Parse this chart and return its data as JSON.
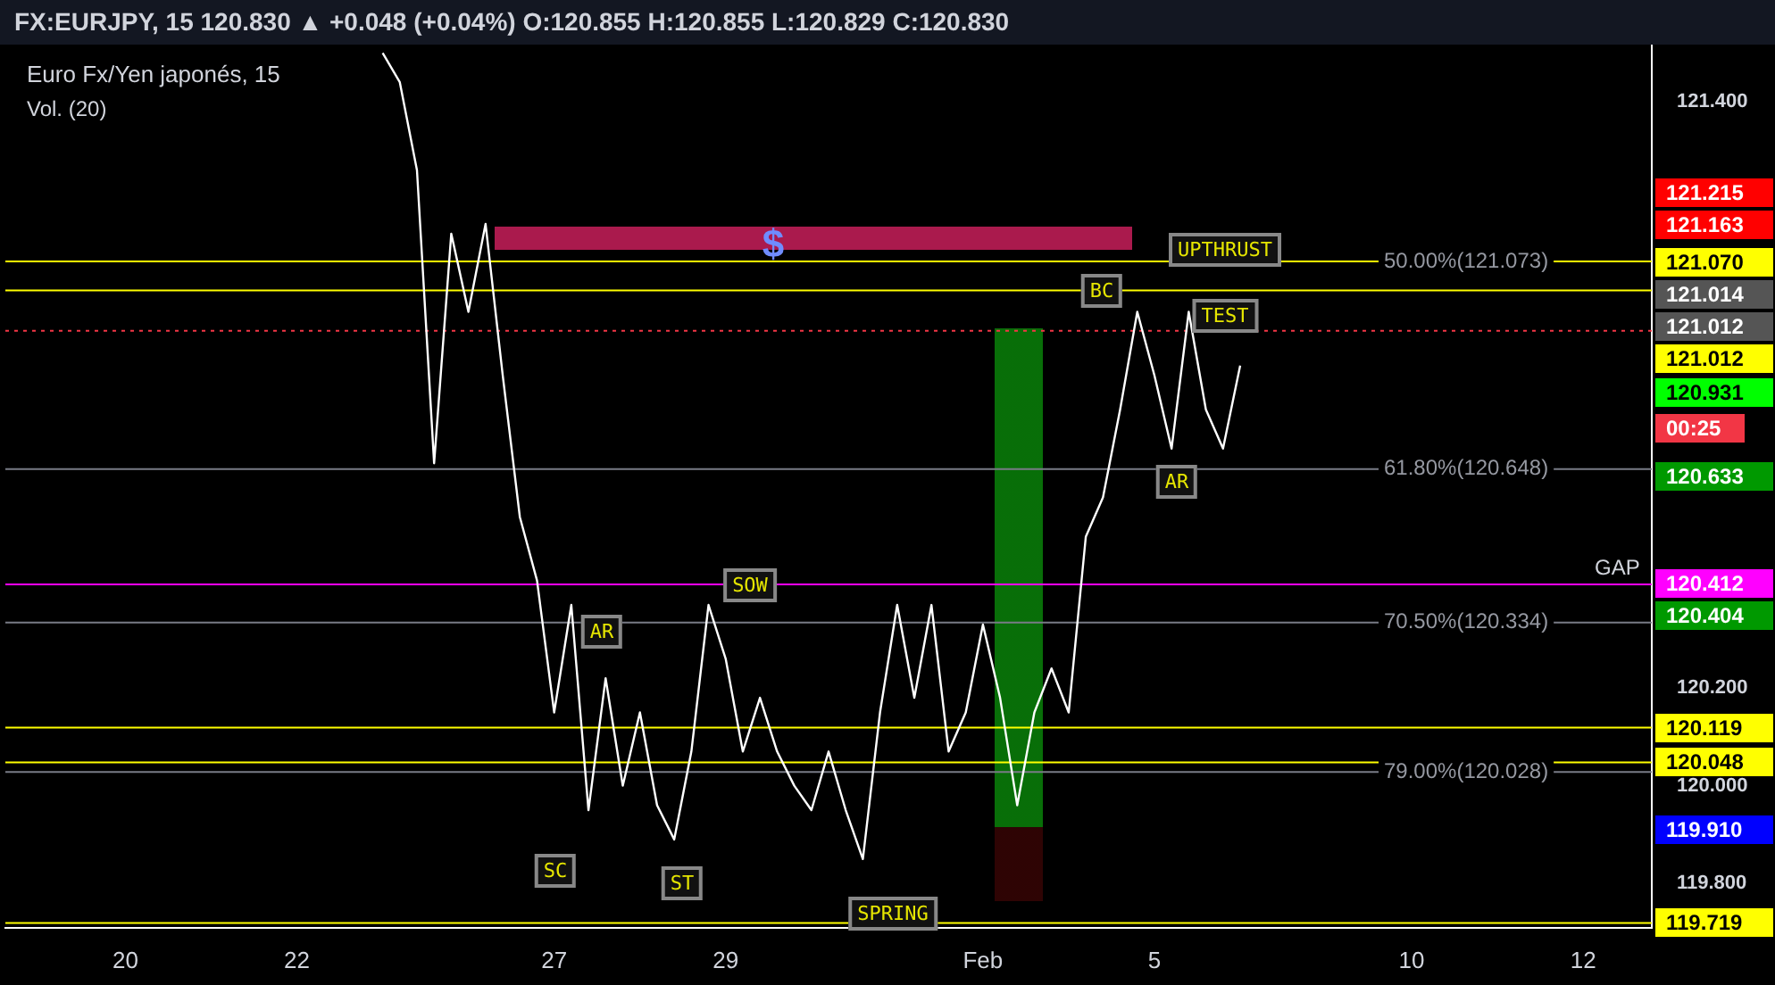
{
  "chart_data": {
    "type": "line",
    "title": "Euro Fx/Yen japonés, 15",
    "subtitle": "FX:EURJPY, 15  120.830 ▲ +0.048 (+0.04%) O:120.855 H:120.855 L:120.829 C:120.830",
    "categories": [
      null,
      null,
      null,
      null,
      null,
      null,
      null,
      "20",
      null,
      null,
      null,
      null,
      null,
      null,
      null,
      null,
      null,
      "22",
      null,
      null,
      null,
      null,
      null,
      null,
      null,
      null,
      null,
      null,
      null,
      null,
      null,
      null,
      "27",
      null,
      null,
      null,
      null,
      null,
      null,
      null,
      null,
      null,
      "29",
      null,
      null,
      null,
      null,
      null,
      null,
      null,
      null,
      null,
      null,
      null,
      null,
      null,
      null,
      "Feb",
      null,
      null,
      null,
      null,
      null,
      null,
      null,
      null,
      null,
      "5",
      null,
      null,
      null,
      null,
      null,
      null,
      null,
      null,
      null,
      null,
      null,
      null,
      null,
      null,
      "10",
      null,
      null,
      null,
      null,
      null,
      null,
      null,
      null,
      null,
      "12",
      null,
      null,
      null,
      null
    ],
    "series": [
      {
        "color": "#ffffff",
        "values": [
          null,
          null,
          null,
          null,
          null,
          null,
          null,
          null,
          null,
          null,
          null,
          null,
          null,
          null,
          null,
          null,
          null,
          null,
          null,
          null,
          null,
          null,
          121.5,
          121.44,
          121.26,
          120.66,
          121.13,
          120.97,
          121.15,
          120.84,
          120.55,
          120.42,
          120.15,
          120.37,
          119.95,
          120.22,
          120.0,
          120.15,
          119.96,
          119.89,
          120.07,
          120.37,
          120.26,
          120.07,
          120.18,
          120.07,
          120.0,
          119.95,
          120.07,
          119.95,
          119.85,
          120.15,
          120.37,
          120.18,
          120.37,
          120.07,
          120.15,
          120.33,
          120.18,
          119.96,
          120.15,
          120.24,
          120.15,
          120.51,
          120.59,
          120.77,
          120.97,
          120.84,
          120.69,
          120.97,
          120.77,
          120.69,
          120.86,
          null,
          null,
          null,
          null,
          null,
          null,
          null,
          null,
          null,
          null,
          null,
          null,
          null,
          null,
          null,
          null,
          null,
          null,
          null,
          null,
          null,
          null,
          null,
          null
        ]
      }
    ],
    "ylim": [
      119.709,
      121.517
    ],
    "yticks": [
      {
        "value": 119.8,
        "label": "119.800"
      },
      {
        "value": 120.0,
        "label": "120.000"
      },
      {
        "value": 120.2,
        "label": "120.200"
      },
      {
        "value": 121.4,
        "label": "121.400"
      }
    ],
    "grid": false,
    "legend": false,
    "marker": "none",
    "line_style": "solid",
    "ref_lines": [
      {
        "axis": "y",
        "value": 121.073,
        "label": "50.00%(121.073)",
        "color": "#ffff00",
        "line_style": "solid"
      },
      {
        "axis": "y",
        "value": 121.014,
        "color": "#ffff00",
        "line_style": "solid"
      },
      {
        "axis": "y",
        "value": 120.931,
        "color": "#f23645",
        "line_style": "dotted"
      },
      {
        "axis": "y",
        "value": 120.648,
        "label": "61.80%(120.648)",
        "color": "#787b86",
        "line_style": "solid"
      },
      {
        "axis": "y",
        "value": 120.412,
        "color": "#ff00ff",
        "line_style": "solid"
      },
      {
        "axis": "y",
        "value": 120.334,
        "label": "70.50%(120.334)",
        "color": "#787b86",
        "line_style": "solid"
      },
      {
        "axis": "y",
        "value": 120.119,
        "color": "#ffff00",
        "line_style": "solid"
      },
      {
        "axis": "y",
        "value": 120.048,
        "color": "#ffff00",
        "line_style": "solid"
      },
      {
        "axis": "y",
        "value": 120.028,
        "label": "79.00%(120.028)",
        "color": "#787b86",
        "line_style": "solid"
      },
      {
        "axis": "y",
        "value": 119.719,
        "color": "#ffff00",
        "line_style": "solid"
      }
    ],
    "annotations": [
      "Vol. (20)",
      "$",
      "AR",
      "SOW",
      "SC",
      "ST",
      "SPRING",
      "BC",
      "UPTHRUST",
      "TEST",
      "AR",
      "GAP",
      "121.215",
      "121.163",
      "121.070",
      "121.014",
      "121.012",
      "121.012",
      "120.931",
      "00:25",
      "120.633",
      "120.412",
      "120.404",
      "120.119",
      "120.048",
      "119.910",
      "119.719"
    ]
  }
}
